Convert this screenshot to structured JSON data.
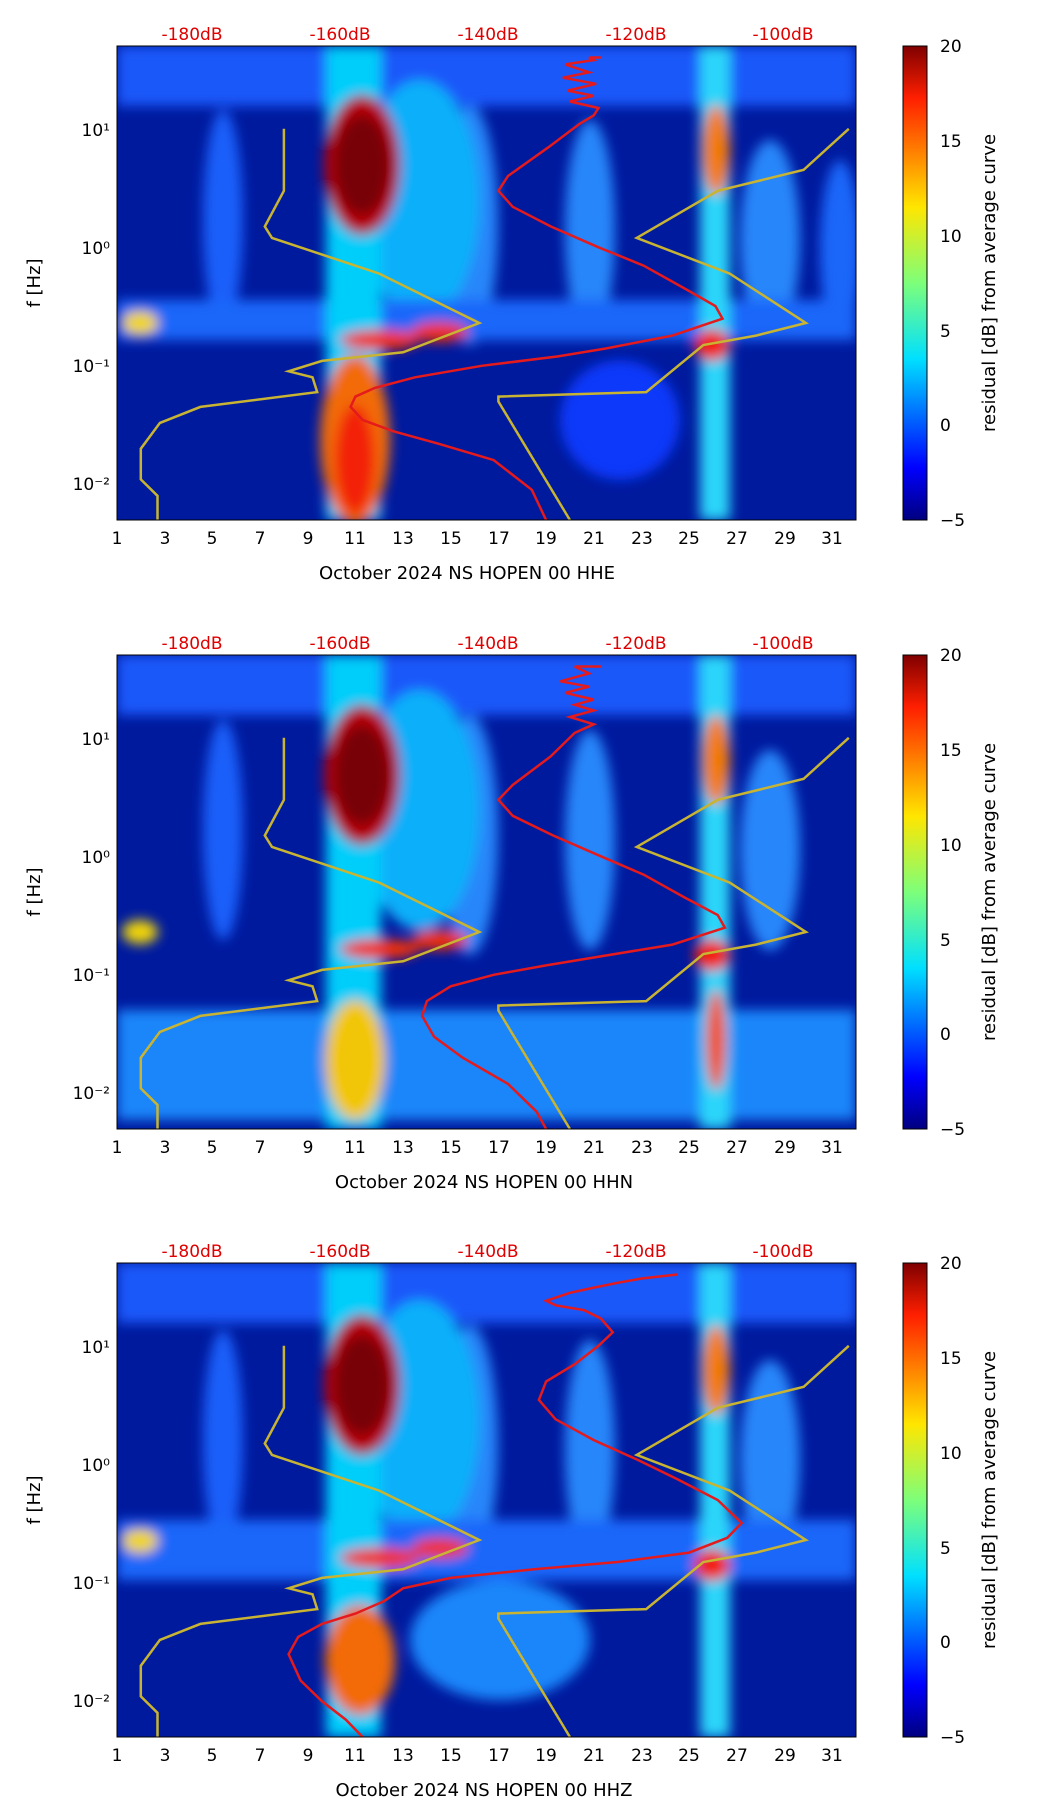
{
  "chart_data": [
    {
      "type": "heatmap",
      "xlabel": "October 2024 NS HOPEN 00 HHE",
      "ylabel": "f [Hz]",
      "x_ticks": [
        "1",
        "3",
        "5",
        "7",
        "9",
        "11",
        "13",
        "15",
        "17",
        "19",
        "21",
        "23",
        "25",
        "27",
        "29",
        "31"
      ],
      "x_tick_values": [
        1,
        3,
        5,
        7,
        9,
        11,
        13,
        15,
        17,
        19,
        21,
        23,
        25,
        27,
        29,
        31
      ],
      "xlim": [
        1,
        32
      ],
      "y_ticks": [
        "10⁻²",
        "10⁻¹",
        "10⁰",
        "10¹"
      ],
      "y_tick_values": [
        0.01,
        0.1,
        1,
        10
      ],
      "ylim": [
        0.005,
        50
      ],
      "y_scale": "log",
      "top_axis_ticks": [
        "-180dB",
        "-160dB",
        "-140dB",
        "-120dB",
        "-100dB"
      ],
      "top_axis_color": "#e00000",
      "colorbar": {
        "label": "residual [dB] from average curve",
        "ticks": [
          "−5",
          "0",
          "5",
          "10",
          "15",
          "20"
        ],
        "tick_values": [
          -5,
          0,
          5,
          10,
          15,
          20
        ],
        "range": [
          -5,
          20
        ],
        "colormap": "jet"
      },
      "series": [
        {
          "name": "",
          "color": "#e41a1c",
          "x": [
            21.3,
            20.8,
            21.0,
            19.8,
            20.8,
            19.7,
            21.1,
            19.9,
            21.0,
            20.0,
            21.2,
            21.0,
            20.4,
            19.1,
            17.4,
            17.0,
            17.6,
            19.2,
            21.2,
            23.1,
            24.8,
            26.1,
            26.4,
            24.3,
            21.5,
            19.5,
            16.3,
            13.5,
            11.8,
            11.0,
            10.8,
            11.3,
            12.6,
            14.5,
            16.8,
            18.4,
            19.0
          ],
          "y": [
            40,
            40,
            38,
            35,
            30,
            27,
            24,
            21,
            19,
            17,
            15,
            13,
            11,
            7,
            4,
            3,
            2.2,
            1.5,
            1.0,
            0.7,
            0.45,
            0.32,
            0.25,
            0.18,
            0.14,
            0.12,
            0.1,
            0.08,
            0.065,
            0.055,
            0.045,
            0.035,
            0.028,
            0.022,
            0.016,
            0.009,
            0.005
          ]
        },
        {
          "name": "",
          "color": "#c8b432",
          "x": [
            8.0,
            8.0,
            7.2,
            7.5,
            12.0,
            16.2,
            13.0,
            9.6,
            8.2,
            9.2,
            9.4,
            4.5,
            2.8,
            2.0,
            2.0,
            2.7,
            2.7
          ],
          "y": [
            10,
            3.0,
            1.5,
            1.2,
            0.6,
            0.23,
            0.13,
            0.11,
            0.09,
            0.08,
            0.06,
            0.045,
            0.033,
            0.02,
            0.011,
            0.008,
            0.005
          ]
        },
        {
          "name": "",
          "color": "#c8b432",
          "x": [
            31.7,
            29.8,
            26.2,
            22.8,
            26.7,
            29.9,
            27.8,
            25.6,
            23.2,
            17.0,
            17.0,
            20.0
          ],
          "y": [
            10,
            4.5,
            3.0,
            1.2,
            0.6,
            0.23,
            0.18,
            0.15,
            0.06,
            0.055,
            0.05,
            0.005
          ]
        }
      ]
    },
    {
      "type": "heatmap",
      "xlabel": "October 2024 NS HOPEN 00 HHN",
      "ylabel": "f [Hz]",
      "x_ticks": [
        "1",
        "3",
        "5",
        "7",
        "9",
        "11",
        "13",
        "15",
        "17",
        "19",
        "21",
        "23",
        "25",
        "27",
        "29",
        "31"
      ],
      "x_tick_values": [
        1,
        3,
        5,
        7,
        9,
        11,
        13,
        15,
        17,
        19,
        21,
        23,
        25,
        27,
        29,
        31
      ],
      "xlim": [
        1,
        32
      ],
      "y_ticks": [
        "10⁻²",
        "10⁻¹",
        "10⁰",
        "10¹"
      ],
      "y_tick_values": [
        0.01,
        0.1,
        1,
        10
      ],
      "ylim": [
        0.005,
        50
      ],
      "y_scale": "log",
      "top_axis_ticks": [
        "-180dB",
        "-160dB",
        "-140dB",
        "-120dB",
        "-100dB"
      ],
      "top_axis_color": "#e00000",
      "colorbar": {
        "label": "residual [dB] from average curve",
        "ticks": [
          "−5",
          "0",
          "5",
          "10",
          "15",
          "20"
        ],
        "tick_values": [
          -5,
          0,
          5,
          10,
          15,
          20
        ],
        "range": [
          -5,
          20
        ],
        "colormap": "jet"
      },
      "series": [
        {
          "name": "",
          "color": "#e41a1c",
          "x": [
            21.3,
            20.2,
            20.8,
            19.6,
            20.8,
            19.8,
            21.0,
            20.2,
            21.0,
            20.0,
            21.0,
            20.2,
            19.2,
            17.6,
            17.0,
            17.6,
            19.3,
            21.3,
            23.1,
            24.8,
            26.2,
            26.5,
            24.3,
            21.0,
            19.0,
            16.8,
            15.0,
            14.0,
            13.8,
            14.3,
            15.5,
            17.4,
            18.6,
            19.0
          ],
          "y": [
            40,
            40,
            35,
            30,
            27,
            24,
            21,
            19,
            17,
            15,
            13,
            11,
            7,
            4,
            3,
            2.2,
            1.5,
            1.0,
            0.7,
            0.45,
            0.32,
            0.25,
            0.18,
            0.14,
            0.12,
            0.1,
            0.08,
            0.06,
            0.045,
            0.03,
            0.02,
            0.012,
            0.007,
            0.005
          ]
        },
        {
          "name": "",
          "color": "#c8b432",
          "x": [
            8.0,
            8.0,
            7.2,
            7.5,
            12.0,
            16.2,
            13.0,
            9.6,
            8.2,
            9.2,
            9.4,
            4.5,
            2.8,
            2.0,
            2.0,
            2.7,
            2.7
          ],
          "y": [
            10,
            3.0,
            1.5,
            1.2,
            0.6,
            0.23,
            0.13,
            0.11,
            0.09,
            0.08,
            0.06,
            0.045,
            0.033,
            0.02,
            0.011,
            0.008,
            0.005
          ]
        },
        {
          "name": "",
          "color": "#c8b432",
          "x": [
            31.7,
            29.8,
            26.2,
            22.8,
            26.7,
            29.9,
            27.8,
            25.6,
            23.2,
            17.0,
            17.0,
            20.0
          ],
          "y": [
            10,
            4.5,
            3.0,
            1.2,
            0.6,
            0.23,
            0.18,
            0.15,
            0.06,
            0.055,
            0.05,
            0.005
          ]
        }
      ]
    },
    {
      "type": "heatmap",
      "xlabel": "October 2024 NS HOPEN 00 HHZ",
      "ylabel": "f [Hz]",
      "x_ticks": [
        "1",
        "3",
        "5",
        "7",
        "9",
        "11",
        "13",
        "15",
        "17",
        "19",
        "21",
        "23",
        "25",
        "27",
        "29",
        "31"
      ],
      "x_tick_values": [
        1,
        3,
        5,
        7,
        9,
        11,
        13,
        15,
        17,
        19,
        21,
        23,
        25,
        27,
        29,
        31
      ],
      "xlim": [
        1,
        32
      ],
      "y_ticks": [
        "10⁻²",
        "10⁻¹",
        "10⁰",
        "10¹"
      ],
      "y_tick_values": [
        0.01,
        0.1,
        1,
        10
      ],
      "ylim": [
        0.005,
        50
      ],
      "y_scale": "log",
      "top_axis_ticks": [
        "-180dB",
        "-160dB",
        "-140dB",
        "-120dB",
        "-100dB"
      ],
      "top_axis_color": "#e00000",
      "colorbar": {
        "label": "residual [dB] from average curve",
        "ticks": [
          "−5",
          "0",
          "5",
          "10",
          "15",
          "20"
        ],
        "tick_values": [
          -5,
          0,
          5,
          10,
          15,
          20
        ],
        "range": [
          -5,
          20
        ],
        "colormap": "jet"
      },
      "series": [
        {
          "name": "",
          "color": "#e41a1c",
          "x": [
            24.5,
            23.0,
            22.0,
            21.0,
            20.0,
            19.0,
            19.4,
            20.6,
            21.3,
            21.8,
            21.2,
            20.2,
            19.0,
            18.7,
            19.4,
            21.0,
            22.8,
            24.5,
            26.2,
            27.2,
            26.6,
            25.0,
            22.0,
            18.5,
            15.0,
            13.0,
            12.2,
            11.0,
            9.6,
            8.6,
            8.2,
            8.7,
            9.6,
            10.6,
            11.3
          ],
          "y": [
            40,
            37,
            34,
            31,
            28,
            24,
            22,
            20,
            17,
            13,
            10,
            7,
            5,
            3.5,
            2.4,
            1.6,
            1.1,
            0.75,
            0.5,
            0.32,
            0.24,
            0.18,
            0.15,
            0.13,
            0.11,
            0.09,
            0.07,
            0.055,
            0.045,
            0.035,
            0.025,
            0.015,
            0.01,
            0.007,
            0.005
          ]
        },
        {
          "name": "",
          "color": "#c8b432",
          "x": [
            8.0,
            8.0,
            7.2,
            7.5,
            12.0,
            16.2,
            13.0,
            9.6,
            8.2,
            9.2,
            9.4,
            4.5,
            2.8,
            2.0,
            2.0,
            2.7,
            2.7
          ],
          "y": [
            10,
            3.0,
            1.5,
            1.2,
            0.6,
            0.23,
            0.13,
            0.11,
            0.09,
            0.08,
            0.06,
            0.045,
            0.033,
            0.02,
            0.011,
            0.008,
            0.005
          ]
        },
        {
          "name": "",
          "color": "#c8b432",
          "x": [
            31.7,
            29.8,
            26.2,
            22.8,
            26.7,
            29.9,
            27.8,
            25.6,
            23.2,
            17.0,
            17.0,
            20.0
          ],
          "y": [
            10,
            4.5,
            3.0,
            1.2,
            0.6,
            0.23,
            0.18,
            0.15,
            0.06,
            0.055,
            0.05,
            0.005
          ]
        }
      ]
    }
  ]
}
